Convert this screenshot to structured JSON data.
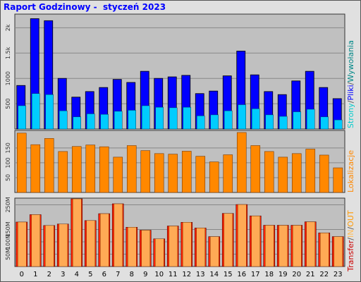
{
  "report": {
    "title": "Raport Godzinowy -  styczeń 2023"
  },
  "colors": {
    "panel_bg": "#c0c0c0",
    "gridline": "#888888",
    "pliki": "#0000ff",
    "strony": "#00ccff",
    "lokalizacje": "#ff8800",
    "transfer_in": "#ff2200",
    "transfer_out": "#ffaa55"
  },
  "chart_data": [
    {
      "type": "bar",
      "categories": [
        "0",
        "1",
        "2",
        "3",
        "4",
        "5",
        "6",
        "7",
        "8",
        "9",
        "10",
        "11",
        "12",
        "13",
        "14",
        "15",
        "16",
        "17",
        "18",
        "19",
        "20",
        "21",
        "22",
        "23"
      ],
      "legend": [
        "Strony",
        "Pliki",
        "Wywołania"
      ],
      "legend_separator": "/",
      "yticks": [
        {
          "label": "500",
          "value": 500
        },
        {
          "label": "1000",
          "value": 1000
        },
        {
          "label": "1.5k",
          "value": 1500
        },
        {
          "label": "2k",
          "value": 2000
        }
      ],
      "ylim": [
        0,
        2270
      ],
      "series": [
        {
          "name": "Wywołania",
          "values": [
            860,
            2180,
            2140,
            1000,
            630,
            740,
            820,
            980,
            920,
            1140,
            1000,
            1030,
            1060,
            700,
            750,
            1050,
            1540,
            1070,
            740,
            680,
            950,
            1140,
            820,
            600
          ]
        },
        {
          "name": "Pliki",
          "values": [
            860,
            2180,
            2140,
            1000,
            630,
            740,
            820,
            980,
            920,
            1140,
            1000,
            1030,
            1060,
            700,
            750,
            1050,
            1540,
            1070,
            740,
            680,
            950,
            1140,
            820,
            600
          ]
        },
        {
          "name": "Strony",
          "values": [
            460,
            700,
            680,
            360,
            240,
            300,
            290,
            350,
            370,
            460,
            430,
            420,
            430,
            260,
            280,
            360,
            480,
            400,
            280,
            250,
            340,
            390,
            240,
            180
          ]
        }
      ]
    },
    {
      "type": "bar",
      "categories": [
        "0",
        "1",
        "2",
        "3",
        "4",
        "5",
        "6",
        "7",
        "8",
        "9",
        "10",
        "11",
        "12",
        "13",
        "14",
        "15",
        "16",
        "17",
        "18",
        "19",
        "20",
        "21",
        "22",
        "23"
      ],
      "legend": [
        "Lokalizacje"
      ],
      "yticks": [
        {
          "label": "50",
          "value": 50
        },
        {
          "label": "100",
          "value": 100
        },
        {
          "label": "150",
          "value": 150
        }
      ],
      "ylim": [
        0,
        209
      ],
      "series": [
        {
          "name": "Lokalizacje",
          "values": [
            200,
            161,
            182,
            138,
            155,
            160,
            154,
            119,
            158,
            141,
            131,
            129,
            139,
            122,
            103,
            127,
            202,
            158,
            138,
            119,
            131,
            146,
            126,
            83
          ]
        }
      ]
    },
    {
      "type": "bar",
      "categories": [
        "0",
        "1",
        "2",
        "3",
        "4",
        "5",
        "6",
        "7",
        "8",
        "9",
        "10",
        "11",
        "12",
        "13",
        "14",
        "15",
        "16",
        "17",
        "18",
        "19",
        "20",
        "21",
        "22",
        "23"
      ],
      "legend": [
        "Transfer",
        "IN",
        "OUT"
      ],
      "legend_separator": "/",
      "yticks": [
        {
          "label": "50M",
          "value": 50
        },
        {
          "label": "100M",
          "value": 100
        },
        {
          "label": "150M",
          "value": 150
        },
        {
          "label": "250M",
          "value": 250
        }
      ],
      "ylim": [
        0,
        277
      ],
      "series": [
        {
          "name": "IN",
          "values": [
            180,
            210,
            166,
            172,
            274,
            186,
            214,
            254,
            159,
            147,
            112,
            164,
            179,
            156,
            121,
            215,
            251,
            205,
            167,
            167,
            167,
            181,
            136,
            121
          ]
        },
        {
          "name": "OUT",
          "values": [
            180,
            210,
            166,
            172,
            274,
            186,
            214,
            254,
            159,
            147,
            112,
            164,
            179,
            156,
            121,
            215,
            251,
            205,
            167,
            167,
            167,
            181,
            136,
            121
          ]
        }
      ]
    }
  ]
}
